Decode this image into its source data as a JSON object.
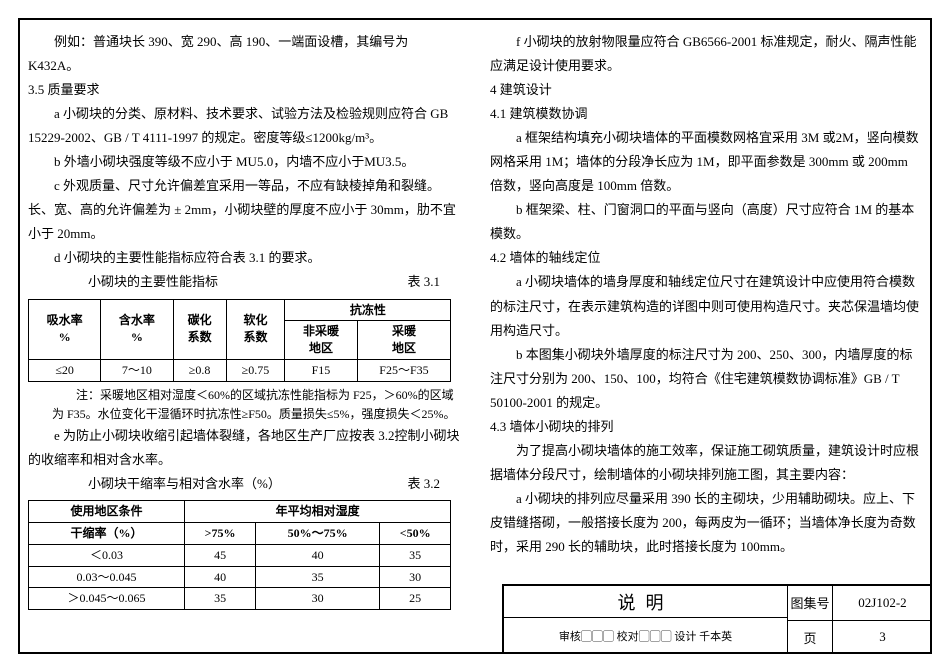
{
  "left_col": {
    "p1": "例如：普通块长 390、宽 290、高 190、一端面设槽，其编号为 K432A。",
    "p1b": "号为 K432A。",
    "sec35": "3.5 质量要求",
    "p_a": "a 小砌块的分类、原材料、技术要求、试验方法及检验规则应符合 GB 15229-2002、GB / T 4111-1997 的规定。密度等级≤1200kg/m³。",
    "p_b": "b 外墙小砌块强度等级不应小于 MU5.0，内墙不应小于MU3.5。",
    "p_c": "c 外观质量、尺寸允许偏差宜采用一等品，不应有缺棱掉角和裂缝。长、宽、高的允许偏差为 ± 2mm，小砌块壁的厚度不应小于 30mm，肋不宜小于 20mm。",
    "p_d": "d 小砌块的主要性能指标应符合表 3.1 的要求。",
    "tbl31_caption": "小砌块的主要性能指标",
    "tbl31_num": "表 3.1",
    "tbl31": {
      "h1": "吸水率\n%",
      "h2": "含水率\n%",
      "h3": "碳化\n系数",
      "h4": "软化\n系数",
      "h5": "抗冻性",
      "h5a": "非采暖\n地区",
      "h5b": "采暖\n地区",
      "r": [
        "≤20",
        "7～10",
        "≥0.8",
        "≥0.75",
        "F15",
        "F25～F35"
      ]
    },
    "note31": "注：采暖地区相对湿度＜60%的区域抗冻性能指标为 F25，＞60%的区域为 F35。水位变化干湿循环时抗冻性≥F50。质量损失≤5%，强度损失＜25%。",
    "p_e": "e 为防止小砌块收缩引起墙体裂缝，各地区生产厂应按表 3.2控制小砌块的收缩率和相对含水率。",
    "tbl32_caption": "小砌块干缩率与相对含水率（%）",
    "tbl32_num": "表 3.2",
    "tbl32": {
      "h1": "使用地区条件",
      "h2": "年平均相对湿度",
      "h_sub": "干缩率（%）",
      "c1": ">75%",
      "c2": "50%～75%",
      "c3": "<50%",
      "rows": [
        [
          "＜0.03",
          "45",
          "40",
          "35"
        ],
        [
          "0.03～0.045",
          "40",
          "35",
          "30"
        ],
        [
          "＞0.045～0.065",
          "35",
          "30",
          "25"
        ]
      ]
    }
  },
  "right_col": {
    "p_f": "f 小砌块的放射物限量应符合 GB6566-2001 标准规定，耐火、隔声性能应满足设计使用要求。",
    "sec4": "4 建筑设计",
    "sec41": "4.1 建筑模数协调",
    "p41a": "a 框架结构填充小砌块墙体的平面模数网格宜采用 3M 或2M，竖向模数网格采用 1M；墙体的分段净长应为 1M，即平面参数是 300mm 或 200mm 倍数，竖向高度是 100mm 倍数。",
    "p41b": "b 框架梁、柱、门窗洞口的平面与竖向（高度）尺寸应符合 1M 的基本模数。",
    "sec42": "4.2 墙体的轴线定位",
    "p42a": "a 小砌块墙体的墙身厚度和轴线定位尺寸在建筑设计中应使用符合模数的标注尺寸，在表示建筑构造的详图中则可使用构造尺寸。夹芯保温墙均使用构造尺寸。",
    "p42b": "b 本图集小砌块外墙厚度的标注尺寸为 200、250、300，内墙厚度的标注尺寸分别为 200、150、100，均符合《住宅建筑模数协调标准》GB / T 50100-2001 的规定。",
    "sec43": "4.3 墙体小砌块的排列",
    "p43intro": "为了提高小砌块墙体的施工效率，保证施工砌筑质量，建筑设计时应根据墙体分段尺寸，绘制墙体的小砌块排列施工图，其主要内容：",
    "p43a": "a 小砌块的排列应尽量采用 390 长的主砌块，少用辅助砌块。应上、下皮错缝搭砌，一般搭接长度为 200，每两皮为一循环；当墙体净长度为奇数时，采用 290 长的辅助块，此时搭接长度为 100mm。"
  },
  "footer": {
    "title": "说明",
    "bottomtext": "审核▢▢▢ 校对▢▢▢ 设计 千本英",
    "set_label": "图集号",
    "set_val": "02J102-2",
    "page_label": "页",
    "page_val": "3"
  }
}
